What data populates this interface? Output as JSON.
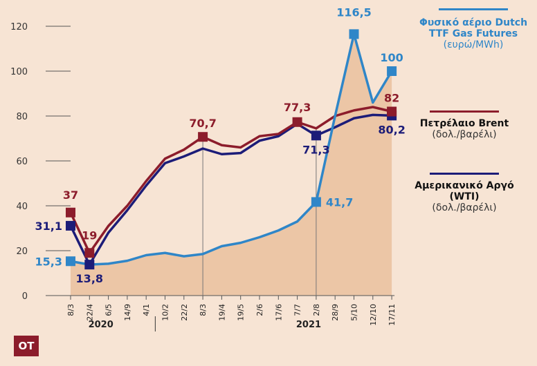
{
  "chart_data": {
    "type": "line",
    "categories": [
      "8/3",
      "22/4",
      "6/5",
      "14/9",
      "4/1",
      "10/2",
      "22/2",
      "8/3",
      "19/4",
      "19/5",
      "2/6",
      "17/6",
      "7/7",
      "2/8",
      "28/9",
      "5/10",
      "12/10",
      "17/11"
    ],
    "years": [
      {
        "label": "2020",
        "at_category": 5
      },
      {
        "label": "2021",
        "at_category": 16
      }
    ],
    "ylim": [
      0,
      120
    ],
    "yticks": [
      0,
      20,
      40,
      60,
      80,
      100,
      120
    ],
    "series": [
      {
        "name": "Φυσικό αέριο Dutch TTF Gas Futures",
        "unit": "(ευρώ/MWh)",
        "color": "#2f86c8",
        "values": [
          15.3,
          13.8,
          14.2,
          15.5,
          18,
          19,
          17.5,
          18.5,
          22,
          23.5,
          26,
          29,
          33,
          41.7,
          80,
          116.5,
          86,
          100
        ],
        "labels": [
          {
            "i": 0,
            "text": "15,3"
          },
          {
            "i": 13,
            "text": "41,7"
          },
          {
            "i": 15,
            "text": "116,5"
          },
          {
            "i": 17,
            "text": "100"
          }
        ],
        "markers": [
          0,
          13,
          15,
          17
        ]
      },
      {
        "name": "Πετρέλαιο Brent",
        "unit": "(δολ./βαρέλι)",
        "color": "#8c1c2b",
        "values": [
          37,
          19,
          31,
          40,
          51,
          61,
          65,
          70.7,
          67,
          66,
          71,
          72,
          77.3,
          74.5,
          80,
          82.5,
          84,
          82
        ],
        "labels": [
          {
            "i": 0,
            "text": "37"
          },
          {
            "i": 1,
            "text": "19"
          },
          {
            "i": 7,
            "text": "70,7"
          },
          {
            "i": 12,
            "text": "77,3"
          },
          {
            "i": 17,
            "text": "82"
          }
        ],
        "markers": [
          0,
          1,
          7,
          12,
          17
        ]
      },
      {
        "name": "Αμερικανικό Αργό (WTI)",
        "unit": "(δολ./βαρέλι)",
        "color": "#1c1c78",
        "values": [
          31.1,
          13.8,
          28,
          38,
          49,
          59,
          62,
          65.5,
          63,
          63.5,
          69,
          71,
          76.5,
          71.3,
          75,
          79,
          80.5,
          80.2
        ],
        "labels": [
          {
            "i": 0,
            "text": "31,1"
          },
          {
            "i": 1,
            "text": "13,8"
          },
          {
            "i": 13,
            "text": "71,3"
          },
          {
            "i": 17,
            "text": "80,2"
          }
        ],
        "markers": [
          0,
          1,
          13,
          17
        ]
      }
    ],
    "vertical_guides": [
      7,
      13
    ],
    "area_fill": "#ecc6a6",
    "grid": false
  },
  "logo": "OT",
  "colors": {
    "background": "#f7e4d4",
    "axis": "#555555"
  }
}
